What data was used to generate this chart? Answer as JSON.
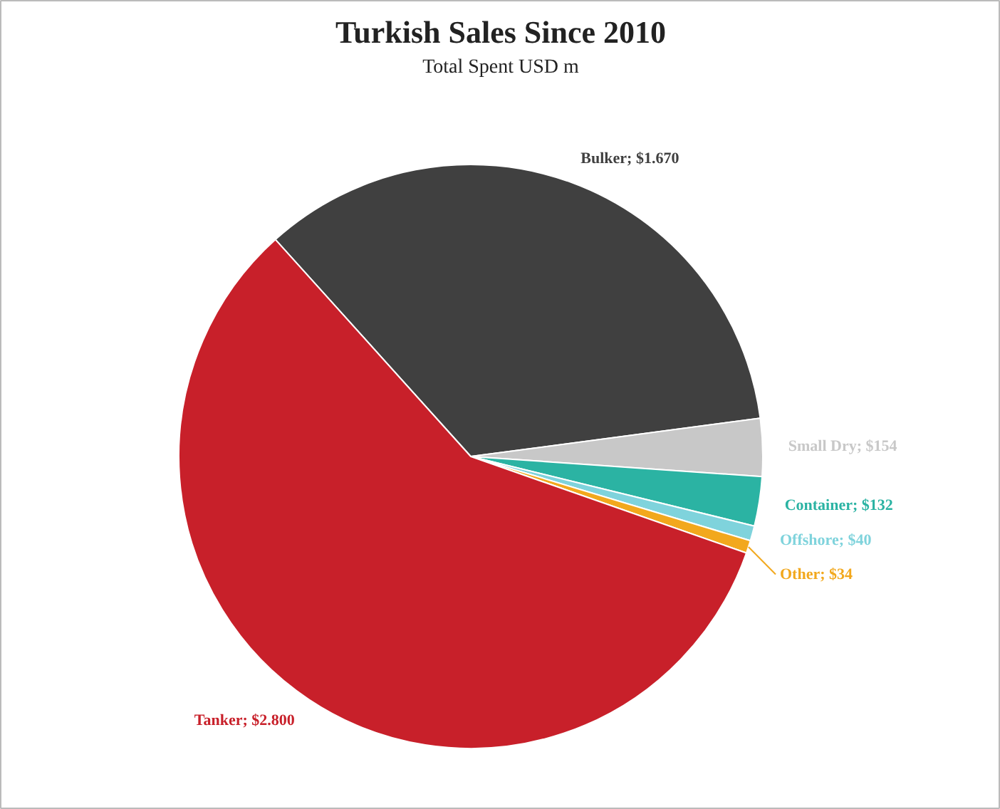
{
  "chart_data": {
    "type": "pie",
    "title": "Turkish Sales Since 2010",
    "subtitle": "Total Spent USD m",
    "categories": [
      "Bulker",
      "Small Dry",
      "Container",
      "Offshore",
      "Other",
      "Tanker"
    ],
    "values": [
      1670,
      154,
      132,
      40,
      34,
      2800
    ],
    "value_labels": [
      "$1.670",
      "$154",
      "$132",
      "$40",
      "$34",
      "$2.800"
    ],
    "colors": [
      "#404040",
      "#c8c8c8",
      "#2bb3a3",
      "#7fd3dc",
      "#f2a81d",
      "#c8202a"
    ]
  }
}
